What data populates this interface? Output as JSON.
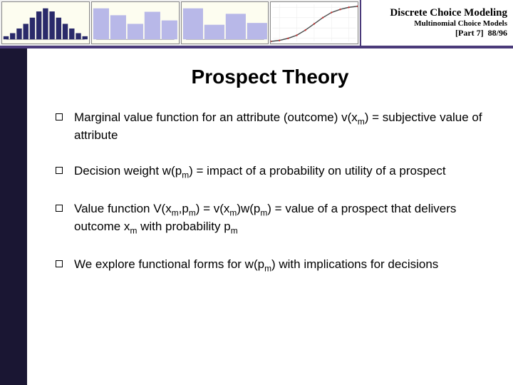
{
  "header": {
    "course_title": "Discrete Choice Modeling",
    "course_subtitle": "Multinomial Choice Models",
    "part_label": "[Part 7]",
    "page_current": 88,
    "page_total": 96,
    "charts": {
      "bar1": {
        "type": "bar",
        "bars": [
          2,
          4,
          7,
          10,
          14,
          18,
          20,
          18,
          14,
          10,
          7,
          4,
          2
        ],
        "bar_color": "#2a2a6a",
        "bg": "#fdfdf0"
      },
      "bar2": {
        "type": "bar",
        "bars": [
          18,
          14,
          9,
          16,
          11
        ],
        "bar_color": "#b8b8e8",
        "bg": "#fdfdf0"
      },
      "bar3": {
        "type": "bar",
        "bars": [
          17,
          8,
          14,
          9
        ],
        "bar_color": "#b8b8e8",
        "bg": "#fdfdf0"
      },
      "curve": {
        "type": "line",
        "points": [
          [
            0,
            38
          ],
          [
            10,
            37
          ],
          [
            20,
            35
          ],
          [
            30,
            32
          ],
          [
            40,
            27
          ],
          [
            50,
            21
          ],
          [
            60,
            15
          ],
          [
            70,
            10
          ],
          [
            80,
            7
          ],
          [
            90,
            5
          ],
          [
            100,
            4
          ]
        ],
        "line_color": "#4a4a4a",
        "dots_color": "#cc3333",
        "bg": "#ffffff"
      }
    }
  },
  "slide": {
    "title": "Prospect Theory",
    "bullets": [
      {
        "html": "Marginal value function for an attribute (outcome) v(x<span class='sub'>m</span>) = subjective value of attribute"
      },
      {
        "html": "Decision weight w(p<span class='sub'>m</span>) = impact of a probability on utility of a prospect"
      },
      {
        "html": "Value function V(x<span class='sub'>m</span>,p<span class='sub'>m</span>) = v(x<span class='sub'>m</span>)w(p<span class='sub'>m</span>) = value of a prospect that delivers outcome x<span class='sub'>m</span> with probability p<span class='sub'>m</span>"
      },
      {
        "html": "We explore functional forms for w(p<span class='sub'>m</span>) with implications for decisions"
      }
    ]
  },
  "colors": {
    "accent_border": "#4a3a7a",
    "left_bar": "#1a1633"
  }
}
